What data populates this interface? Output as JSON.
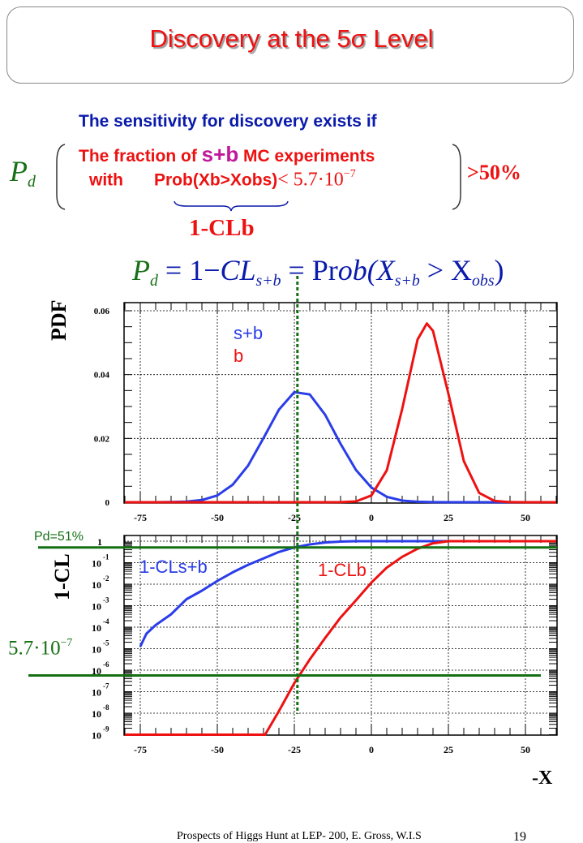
{
  "title": {
    "text_main": "Discovery at the  5",
    "sigma": "σ",
    "text_end": " Level"
  },
  "condition": {
    "intro": "The sensitivity for discovery exists if",
    "pd_symbol": "P",
    "pd_sub": "d",
    "line1_pre": "The fraction of ",
    "line1_highlight": "s+b",
    "line1_post": " MC experiments",
    "line2_with": "with",
    "line2_prob": "Prob(Xb>Xobs)",
    "line2_lt": "< 5.7·10",
    "line2_exp": "−7",
    "threshold": ">50%",
    "brace_label": "1-CLb"
  },
  "formula": {
    "pd": "P",
    "pd_sub": "d",
    "eq1": " = 1−",
    "cl": "CL",
    "cl_sub": "s+b",
    "eq2": " = Pr",
    "ob": "ob(X",
    "x_sub": "s+b",
    "gt": " > X",
    "obs_sub": "obs",
    "close": ")"
  },
  "annotations": {
    "pd51": "Pd=51%",
    "threshold_mant": "5.7·10",
    "threshold_exp": "−7",
    "xlabel": "-X"
  },
  "colors": {
    "signal": "#2a3de8",
    "background": "#ee1111",
    "annotation": "#157015",
    "text_blue": "#0a1aaa"
  },
  "footer": {
    "text": "Prospects of Higgs Hunt at LEP-   200, E. Gross, W.I.S",
    "page": "19"
  },
  "chart_data": [
    {
      "type": "line",
      "ylabel": "PDF",
      "xlim": [
        -80,
        60
      ],
      "ylim": [
        0,
        0.0625
      ],
      "grid": true,
      "x_ticks": [
        "-75",
        "-50",
        "-25",
        "0",
        "25",
        "50"
      ],
      "y_ticks": [
        "0",
        "0.02",
        "0.04",
        "0.06"
      ],
      "legend": [
        "s+b",
        "b"
      ],
      "legend_placement": "top-center",
      "series": [
        {
          "name": "s+b",
          "color": "#2a3de8",
          "x": [
            -80,
            -75,
            -70,
            -65,
            -60,
            -55,
            -50,
            -45,
            -40,
            -35,
            -30,
            -25,
            -20,
            -15,
            -10,
            -5,
            0,
            5,
            10,
            15,
            20,
            25,
            30,
            60
          ],
          "y": [
            0,
            1e-06,
            1e-05,
            4e-05,
            0.00018,
            0.00068,
            0.0021,
            0.0055,
            0.0115,
            0.0201,
            0.029,
            0.0345,
            0.0338,
            0.0274,
            0.0183,
            0.0101,
            0.0046,
            0.0017,
            0.0005,
            0.00014,
            3e-05,
            0,
            0,
            0
          ]
        },
        {
          "name": "b",
          "color": "#ee1111",
          "x": [
            -80,
            -15,
            -10,
            -5,
            0,
            5,
            10,
            15,
            18,
            20,
            25,
            30,
            35,
            40,
            45,
            50,
            60
          ],
          "y": [
            0,
            0,
            2e-05,
            0.00025,
            0.0021,
            0.01,
            0.0292,
            0.051,
            0.056,
            0.0537,
            0.034,
            0.0129,
            0.0029,
            0.0004,
            3e-05,
            0,
            0
          ]
        }
      ]
    },
    {
      "type": "line",
      "ylabel": "1-CL",
      "xlabel": "-X",
      "xlim": [
        -80,
        60
      ],
      "ylim": [
        1e-09,
        1
      ],
      "yscale": "log",
      "grid": true,
      "x_ticks": [
        "-75",
        "-50",
        "-25",
        "0",
        "25",
        "50"
      ],
      "y_ticks": [
        {
          "base": "1",
          "exp": ""
        },
        {
          "base": "10",
          "exp": "-1"
        },
        {
          "base": "10",
          "exp": "-2"
        },
        {
          "base": "10",
          "exp": "-3"
        },
        {
          "base": "10",
          "exp": "-4"
        },
        {
          "base": "10",
          "exp": "-5"
        },
        {
          "base": "10",
          "exp": "-6"
        },
        {
          "base": "10",
          "exp": "-7"
        },
        {
          "base": "10",
          "exp": "-8"
        },
        {
          "base": "10",
          "exp": "-9"
        }
      ],
      "series": [
        {
          "name": "1-CLs+b",
          "color": "#2a3de8",
          "x": [
            -75,
            -73,
            -70,
            -65,
            -60,
            -55,
            -50,
            -45,
            -40,
            -35,
            -30,
            -25,
            -20,
            -15,
            -10,
            -5,
            0,
            60
          ],
          "log10_y": [
            -4.9,
            -4.3,
            -3.9,
            -3.4,
            -2.7,
            -2.3,
            -1.85,
            -1.45,
            -1.1,
            -0.8,
            -0.5,
            -0.29,
            -0.15,
            -0.06,
            -0.02,
            0,
            0,
            0
          ]
        },
        {
          "name": "1-CLb",
          "color": "#ee1111",
          "x": [
            -80,
            -34.5,
            -30,
            -25,
            -20,
            -15,
            -10,
            -5,
            0,
            5,
            10,
            15,
            20,
            25,
            60
          ],
          "log10_y": [
            -9,
            -9,
            -7.9,
            -6.6,
            -5.5,
            -4.5,
            -3.55,
            -2.75,
            -1.93,
            -1.23,
            -0.73,
            -0.35,
            -0.1,
            0,
            0
          ]
        }
      ],
      "reference_lines": [
        {
          "label": "Pd=51%",
          "axis": "y",
          "value": 0.51
        },
        {
          "label": "5.7·10^-7",
          "axis": "y",
          "value": 5.7e-07
        },
        {
          "axis": "x",
          "value": -24
        }
      ]
    }
  ]
}
